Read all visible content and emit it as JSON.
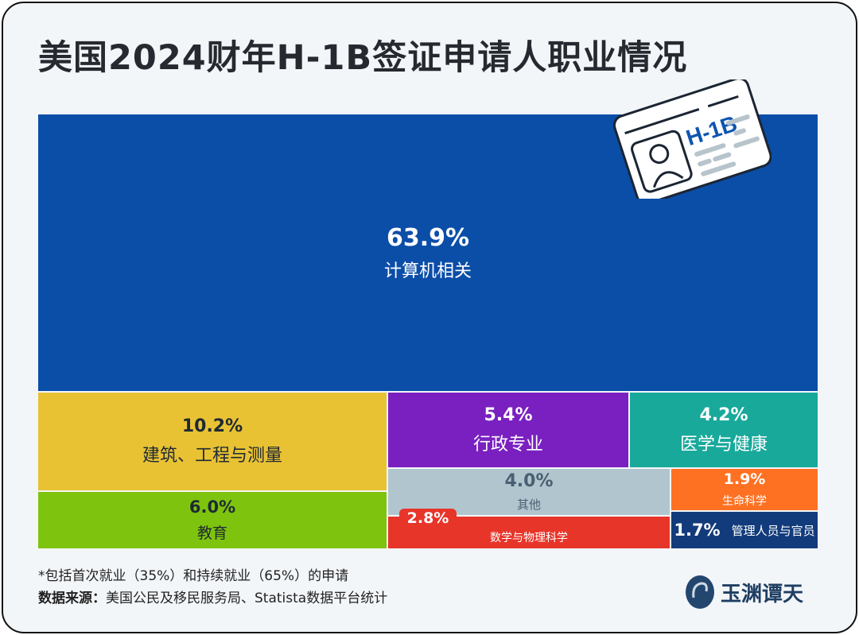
{
  "title": "美国2024财年H-1B签证申请人职业情况",
  "chart_data": {
    "type": "treemap",
    "title": "美国2024财年H-1B签证申请人职业情况",
    "unit": "%",
    "items": [
      {
        "label": "计算机相关",
        "value": 63.9,
        "display": "63.9%",
        "color": "#0b4ea8"
      },
      {
        "label": "建筑、工程与测量",
        "value": 10.2,
        "display": "10.2%",
        "color": "#e9c234"
      },
      {
        "label": "教育",
        "value": 6.0,
        "display": "6.0%",
        "color": "#7ec40e"
      },
      {
        "label": "行政专业",
        "value": 5.4,
        "display": "5.4%",
        "color": "#7a20c0"
      },
      {
        "label": "医学与健康",
        "value": 4.2,
        "display": "4.2%",
        "color": "#18a99b"
      },
      {
        "label": "其他",
        "value": 4.0,
        "display": "4.0%",
        "color": "#b0c5cd"
      },
      {
        "label": "数学与物理科学",
        "value": 2.8,
        "display": "2.8%",
        "color": "#e8352a"
      },
      {
        "label": "生命科学",
        "value": 1.9,
        "display": "1.9%",
        "color": "#ff7122"
      },
      {
        "label": "管理人员与官员",
        "value": 1.7,
        "display": "1.7%",
        "color": "#123b7b"
      }
    ]
  },
  "badge": {
    "text": "H-1B",
    "icon": "id-card-icon"
  },
  "footer": {
    "note": "*包括首次就业（35%）和持续就业（65%）的申请",
    "source_label": "数据来源：",
    "source_text": "美国公民及移民服务局、Statista数据平台统计"
  },
  "logo": {
    "text": "玉渊谭天"
  }
}
